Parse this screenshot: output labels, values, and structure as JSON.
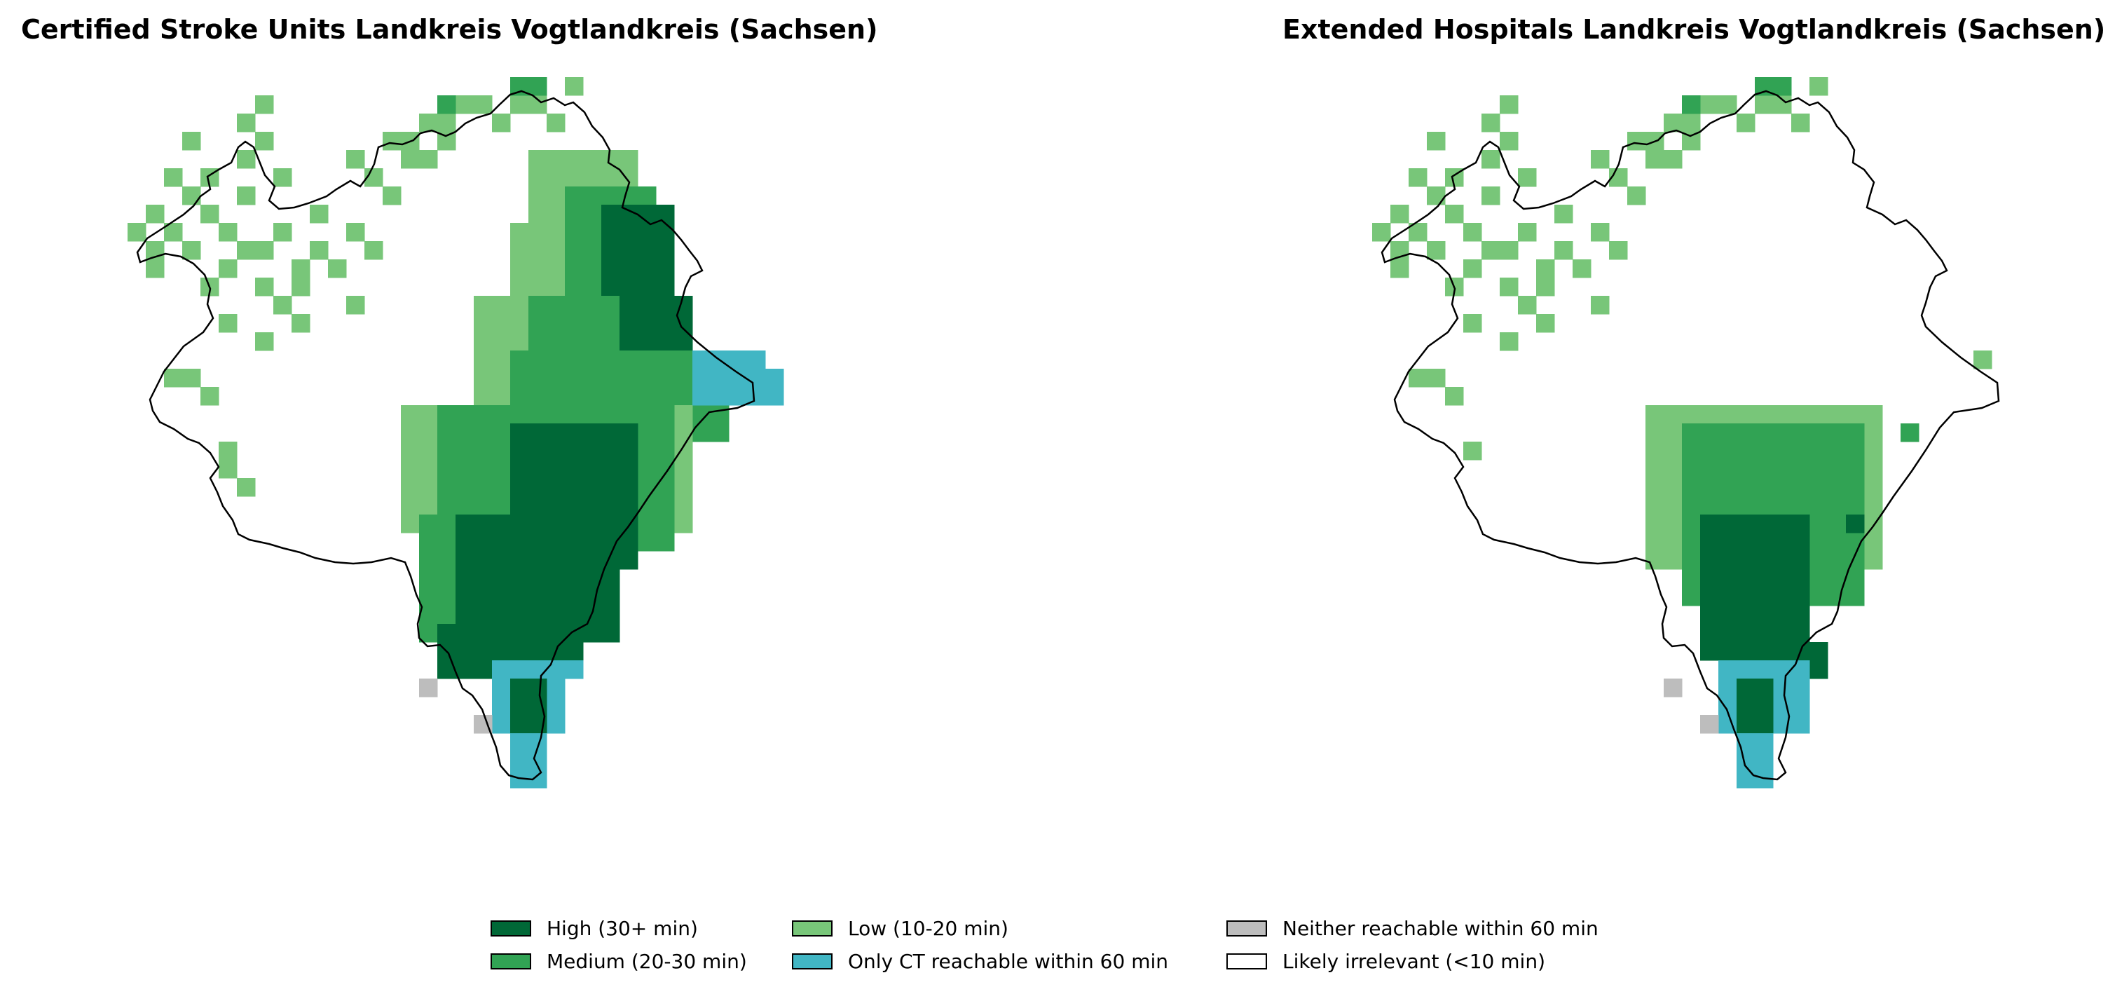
{
  "maps": [
    {
      "title": "Certified Stroke Units Landkreis Vogtlandkreis (Sachsen)",
      "scenario": "stroke"
    },
    {
      "title": "Extended Hospitals Landkreis Vogtlandkreis (Sachsen)",
      "scenario": "extended"
    }
  ],
  "legend": [
    {
      "label": "High (30+ min)",
      "color": "#006837"
    },
    {
      "label": "Low (10-20 min)",
      "color": "#78c679"
    },
    {
      "label": "Neither reachable within 60 min",
      "color": "#bdbdbd"
    },
    {
      "label": "Medium (20-30 min)",
      "color": "#31a354"
    },
    {
      "label": "Only CT reachable within 60 min",
      "color": "#41b6c4"
    },
    {
      "label": "Likely irrelevant (<10 min)",
      "color": "#ffffff"
    }
  ],
  "colors": {
    "high": "#006837",
    "medium": "#31a354",
    "low": "#78c679",
    "ct": "#41b6c4",
    "neither": "#bdbdbd",
    "outline": "#000000"
  }
}
